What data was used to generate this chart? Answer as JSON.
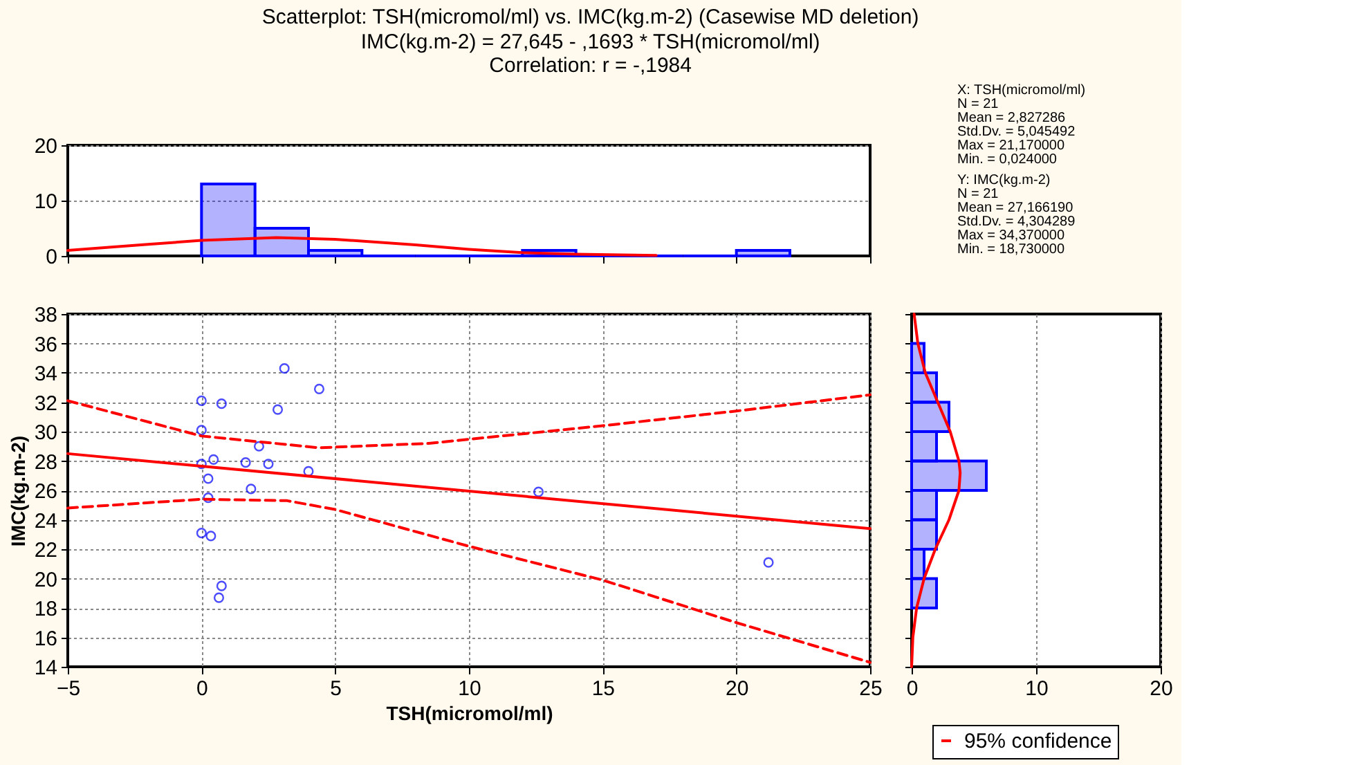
{
  "chart_data": [
    {
      "type": "histogram",
      "title": "Scatterplot: TSH(micromol/ml) vs. IMC(kg.m-2) (Casewise MD deletion)",
      "subtitle": "IMC(kg.m-2) = 27,645 - ,1693  * TSH(micromol/ml)\nCorrelation: r = -,1984",
      "bins": [
        0,
        2,
        4,
        6,
        8,
        10,
        12,
        14,
        16,
        18,
        20,
        22
      ],
      "values": [
        13,
        5,
        1,
        0,
        0,
        0,
        1,
        0,
        0,
        0,
        1
      ],
      "color": "#0000ff",
      "series": [
        {
          "type": "line",
          "color": "#ff0000",
          "x": [
            -5,
            -2,
            0,
            2.8,
            5,
            8,
            10,
            12,
            14,
            17
          ],
          "values": [
            1.0,
            2.1,
            2.8,
            3.3,
            3.0,
            2.0,
            1.2,
            0.6,
            0.3,
            0.1
          ]
        }
      ],
      "xlim": [
        -5,
        25
      ],
      "xticks": [
        -5,
        0,
        5,
        10,
        15,
        20,
        25
      ],
      "ylim": [
        0,
        20
      ],
      "yticks": [
        0,
        10,
        20
      ],
      "tick_labels": "y",
      "grid": "y",
      "annotations": [
        "X: TSH(micromol/ml)",
        "N = 21",
        "Mean = 2,827286",
        "Std.Dv. = 5,045492",
        "Max = 21,170000",
        "Min. = 0,024000",
        "Y: IMC(kg.m-2)",
        "N = 21",
        "Mean = 27,166190",
        "Std.Dv. = 4,304289",
        "Max = 34,370000",
        "Min. = 18,730000"
      ]
    },
    {
      "type": "scatter",
      "xlabel": "TSH(micromol/ml)",
      "ylabel": "IMC(kg.m-2)",
      "grid": true,
      "legend": "bottom right",
      "xlim": [
        -5,
        25
      ],
      "xticks": [
        -5,
        0,
        5,
        10,
        15,
        20,
        25
      ],
      "ylim": [
        14,
        38
      ],
      "yticks": [
        14,
        16,
        18,
        20,
        22,
        24,
        26,
        28,
        30,
        32,
        34,
        36,
        38
      ],
      "series": [
        {
          "type": "scatter",
          "marker": "circle",
          "color": "#0000ff",
          "x": [
            0,
            0.75,
            3.1,
            4.4,
            2.85,
            0,
            2.15,
            0.45,
            0,
            1.65,
            2.5,
            4.0,
            0.25,
            1.85,
            0.25,
            12.6,
            0,
            0.35,
            0.75,
            0.65,
            21.2
          ],
          "values": [
            32.1,
            31.9,
            34.3,
            32.9,
            31.5,
            30.1,
            29.0,
            28.1,
            27.8,
            27.9,
            27.8,
            27.3,
            26.8,
            26.1,
            25.5,
            25.9,
            23.1,
            22.9,
            19.5,
            18.7,
            21.1
          ]
        },
        {
          "type": "line",
          "color": "#ff0000",
          "line_style": "solid",
          "x": [
            -5,
            25
          ],
          "values": [
            28.5,
            23.4
          ]
        },
        {
          "type": "line",
          "name": "95% confidence",
          "color": "#ff0000",
          "line_style": "dashed",
          "x": [
            -5,
            0,
            4.4,
            8.5,
            15,
            20,
            25
          ],
          "values": [
            32.1,
            29.7,
            28.9,
            29.2,
            30.4,
            31.4,
            32.5
          ]
        },
        {
          "type": "line",
          "color": "#ff0000",
          "line_style": "dashed",
          "x": [
            -5,
            0,
            3.2,
            5,
            10,
            15,
            20,
            25
          ],
          "values": [
            24.8,
            25.4,
            25.3,
            24.7,
            22.2,
            19.9,
            17.0,
            14.3
          ]
        }
      ]
    },
    {
      "type": "histogram",
      "orientation": "horizontal",
      "bins": [
        18,
        20,
        22,
        24,
        26,
        28,
        30,
        32,
        34,
        36
      ],
      "values": [
        2,
        1,
        2,
        2,
        6,
        2,
        3,
        2,
        1
      ],
      "color": "#0000ff",
      "series": [
        {
          "type": "line",
          "color": "#ff0000",
          "x": [
            14,
            16,
            18,
            20,
            22,
            24,
            26,
            27.2,
            28,
            30,
            32,
            34,
            36,
            38
          ],
          "values": [
            0.0,
            0.1,
            0.4,
            1.0,
            1.9,
            3.0,
            3.8,
            3.9,
            3.8,
            3.1,
            2.1,
            1.1,
            0.5,
            0.2
          ]
        }
      ],
      "xlim": [
        0,
        20
      ],
      "xticks": [
        0,
        10,
        20
      ],
      "ylim": [
        14,
        38
      ],
      "yticks": [
        14,
        16,
        18,
        20,
        22,
        24,
        26,
        28,
        30,
        32,
        34,
        36,
        38
      ],
      "tick_labels": "x",
      "grid": "x"
    }
  ]
}
